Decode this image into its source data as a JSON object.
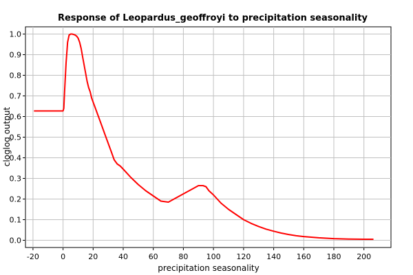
{
  "chart_data": {
    "type": "line",
    "title": "Response of Leopardus_geoffroyi to precipitation seasonality",
    "xlabel": "precipitation seasonality",
    "ylabel": "cloglog output",
    "xlim": [
      -25,
      218
    ],
    "ylim": [
      -0.035,
      1.035
    ],
    "xticks": [
      -20,
      0,
      20,
      40,
      60,
      80,
      100,
      120,
      140,
      160,
      180,
      200
    ],
    "yticks": [
      0.0,
      0.1,
      0.2,
      0.3,
      0.4,
      0.5,
      0.6,
      0.7,
      0.8,
      0.9,
      1.0
    ],
    "grid": true,
    "series": [
      {
        "name": "response",
        "color": "#ff0000",
        "x": [
          -19,
          -10,
          0,
          0.5,
          1,
          2,
          3,
          4,
          5,
          6,
          7,
          8,
          9,
          10,
          11,
          12,
          13,
          14,
          15,
          16,
          17,
          18,
          19,
          20,
          22,
          25,
          28,
          30,
          32,
          34,
          36,
          38,
          40,
          45,
          50,
          55,
          60,
          65,
          70,
          75,
          80,
          85,
          90,
          93,
          95,
          97,
          100,
          105,
          110,
          115,
          120,
          125,
          130,
          135,
          140,
          145,
          150,
          155,
          160,
          170,
          180,
          190,
          200,
          206
        ],
        "values": [
          0.627,
          0.627,
          0.627,
          0.64,
          0.72,
          0.86,
          0.96,
          0.995,
          1.0,
          1.0,
          0.998,
          0.995,
          0.99,
          0.98,
          0.96,
          0.93,
          0.89,
          0.85,
          0.81,
          0.77,
          0.74,
          0.72,
          0.69,
          0.67,
          0.63,
          0.57,
          0.51,
          0.47,
          0.43,
          0.39,
          0.37,
          0.36,
          0.345,
          0.305,
          0.27,
          0.24,
          0.215,
          0.19,
          0.185,
          0.205,
          0.225,
          0.245,
          0.265,
          0.265,
          0.26,
          0.24,
          0.22,
          0.18,
          0.15,
          0.125,
          0.1,
          0.082,
          0.067,
          0.054,
          0.044,
          0.035,
          0.028,
          0.022,
          0.018,
          0.012,
          0.008,
          0.006,
          0.005,
          0.005
        ]
      }
    ]
  }
}
